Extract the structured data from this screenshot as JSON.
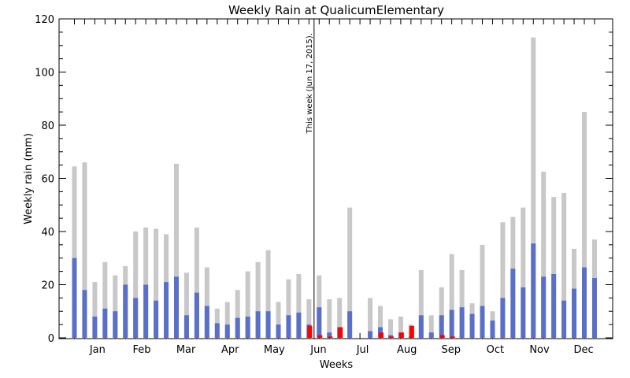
{
  "chart_data": {
    "type": "bar",
    "title": "Weekly Rain at QualicumElementary",
    "xlabel": "Weeks",
    "ylabel": "Weekly rain (mm)",
    "ylim": [
      0,
      120
    ],
    "yticks": [
      0,
      20,
      40,
      60,
      80,
      100,
      120
    ],
    "grid": false,
    "x_tick_labels": [
      "Jan",
      "Feb",
      "Mar",
      "Apr",
      "May",
      "Jun",
      "Jul",
      "Aug",
      "Sep",
      "Oct",
      "Nov",
      "Dec"
    ],
    "annotation": "This week (Jun 17, 2015).",
    "annotation_week": 24,
    "weeks": [
      1,
      2,
      3,
      4,
      5,
      6,
      7,
      8,
      9,
      10,
      11,
      12,
      13,
      14,
      15,
      16,
      17,
      18,
      19,
      20,
      21,
      22,
      23,
      24,
      25,
      26,
      27,
      28,
      29,
      30,
      31,
      32,
      33,
      34,
      35,
      36,
      37,
      38,
      39,
      40,
      41,
      42,
      43,
      44,
      45,
      46,
      47,
      48,
      49,
      50,
      51,
      52
    ],
    "series": [
      {
        "color": "#c8c8c8",
        "values": [
          64.5,
          66,
          21,
          28.5,
          23.5,
          27,
          40,
          41.5,
          41,
          39,
          65.5,
          24.5,
          41.5,
          26.5,
          11,
          13.5,
          18,
          25,
          28.5,
          33,
          13.5,
          22,
          24,
          14.5,
          23.5,
          14.5,
          15,
          49,
          0,
          15,
          12,
          7,
          8,
          5,
          25.5,
          8.5,
          19,
          31.5,
          25.5,
          13,
          35,
          10,
          43.5,
          45.5,
          49,
          113,
          62.5,
          53,
          54.5,
          33.5,
          85,
          37
        ]
      },
      {
        "color": "#5a6fc8",
        "values": [
          30,
          18,
          8,
          11,
          10,
          20,
          15,
          20,
          14,
          21,
          23,
          8.5,
          17,
          12,
          5.5,
          5,
          7.5,
          8,
          10,
          10,
          5,
          8.5,
          9.5,
          5,
          11.5,
          2,
          4,
          10,
          0,
          2.5,
          4,
          1,
          2,
          0.5,
          8.5,
          2,
          8.5,
          10.5,
          11.5,
          9,
          12,
          6.5,
          15,
          26,
          19,
          35.5,
          23,
          24,
          14,
          18.5,
          26.5,
          22.5
        ]
      },
      {
        "color": "#ff0000",
        "values": [
          null,
          null,
          null,
          null,
          null,
          null,
          null,
          null,
          null,
          null,
          null,
          null,
          null,
          null,
          null,
          null,
          null,
          null,
          null,
          null,
          null,
          null,
          null,
          4.5,
          1,
          0.5,
          4,
          0,
          0,
          0,
          2,
          0.5,
          2,
          4.5,
          0,
          0,
          1,
          0.5,
          null,
          null,
          null,
          null,
          null,
          null,
          null,
          null,
          null,
          null,
          null,
          null,
          null,
          null
        ]
      }
    ]
  }
}
